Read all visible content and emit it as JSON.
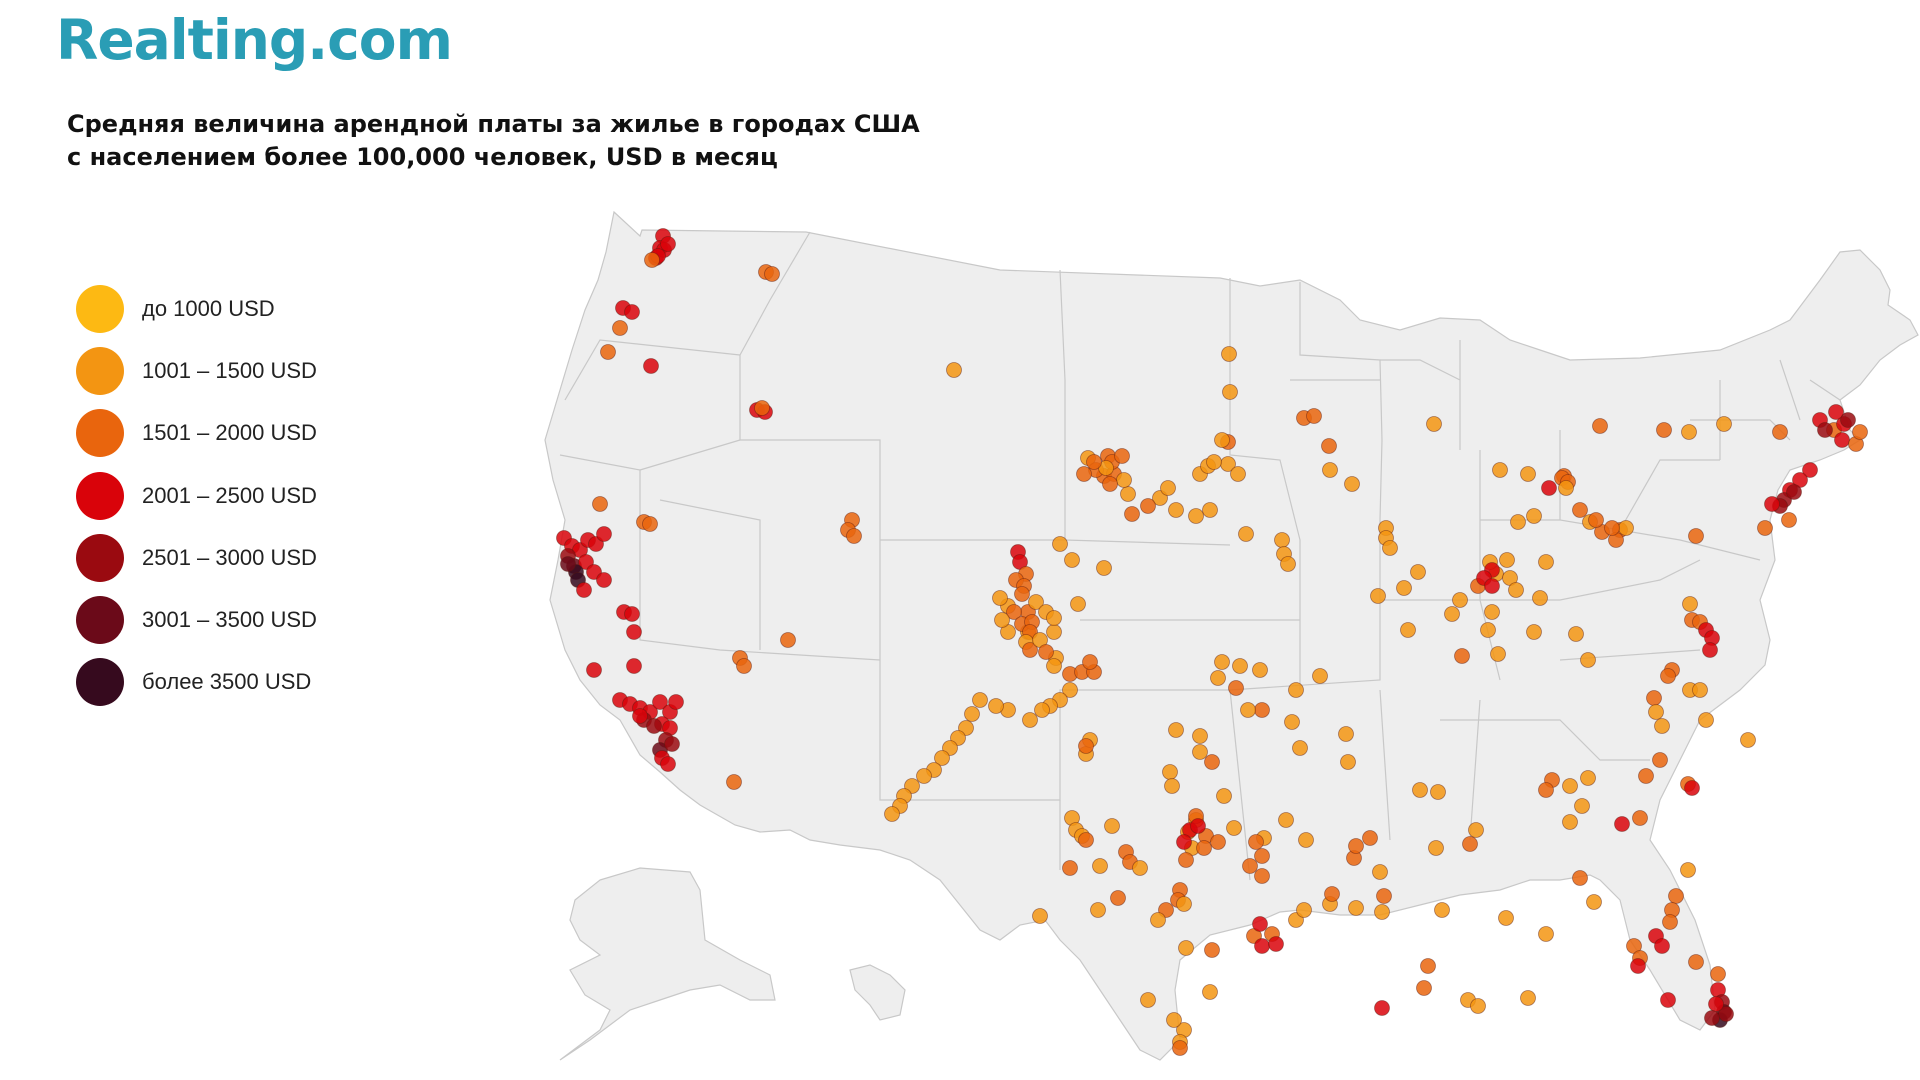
{
  "logo": "Realting.com",
  "title_line1": "Средняя величина арендной платы за жилье в городах США",
  "title_line2": "с населением более 100,000 человек, USD в месяц",
  "legend": [
    {
      "label": "до 1000 USD",
      "color": "#fdb913"
    },
    {
      "label": "1001 – 1500 USD",
      "color": "#f39512"
    },
    {
      "label": "1501 – 2000 USD",
      "color": "#e9650d"
    },
    {
      "label": "2001 – 2500 USD",
      "color": "#d9030a"
    },
    {
      "label": "2501 – 3000 USD",
      "color": "#9a0a10"
    },
    {
      "label": "3001 – 3500 USD",
      "color": "#6b0a19"
    },
    {
      "label": "более 3500 USD",
      "color": "#360a1e"
    }
  ],
  "map": {
    "land_color": "#eeeeee",
    "border_color": "#c8c8c8"
  }
}
